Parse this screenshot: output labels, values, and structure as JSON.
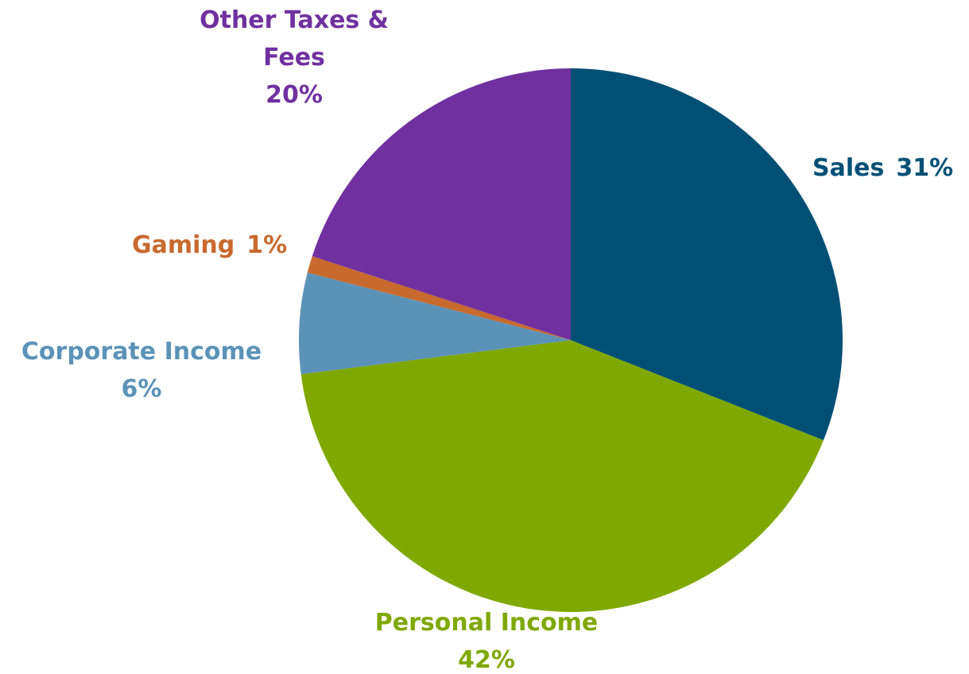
{
  "chart_data": {
    "type": "pie",
    "categories": [
      "Sales",
      "Personal Income",
      "Corporate Income",
      "Gaming",
      "Other Taxes & Fees"
    ],
    "values": [
      31,
      42,
      6,
      1,
      20
    ],
    "value_labels": [
      "31%",
      "42%",
      "6%",
      "1%",
      "20%"
    ],
    "colors": [
      "#005076",
      "#7fa800",
      "#5b93b8",
      "#c8692d",
      "#7030a0"
    ]
  }
}
